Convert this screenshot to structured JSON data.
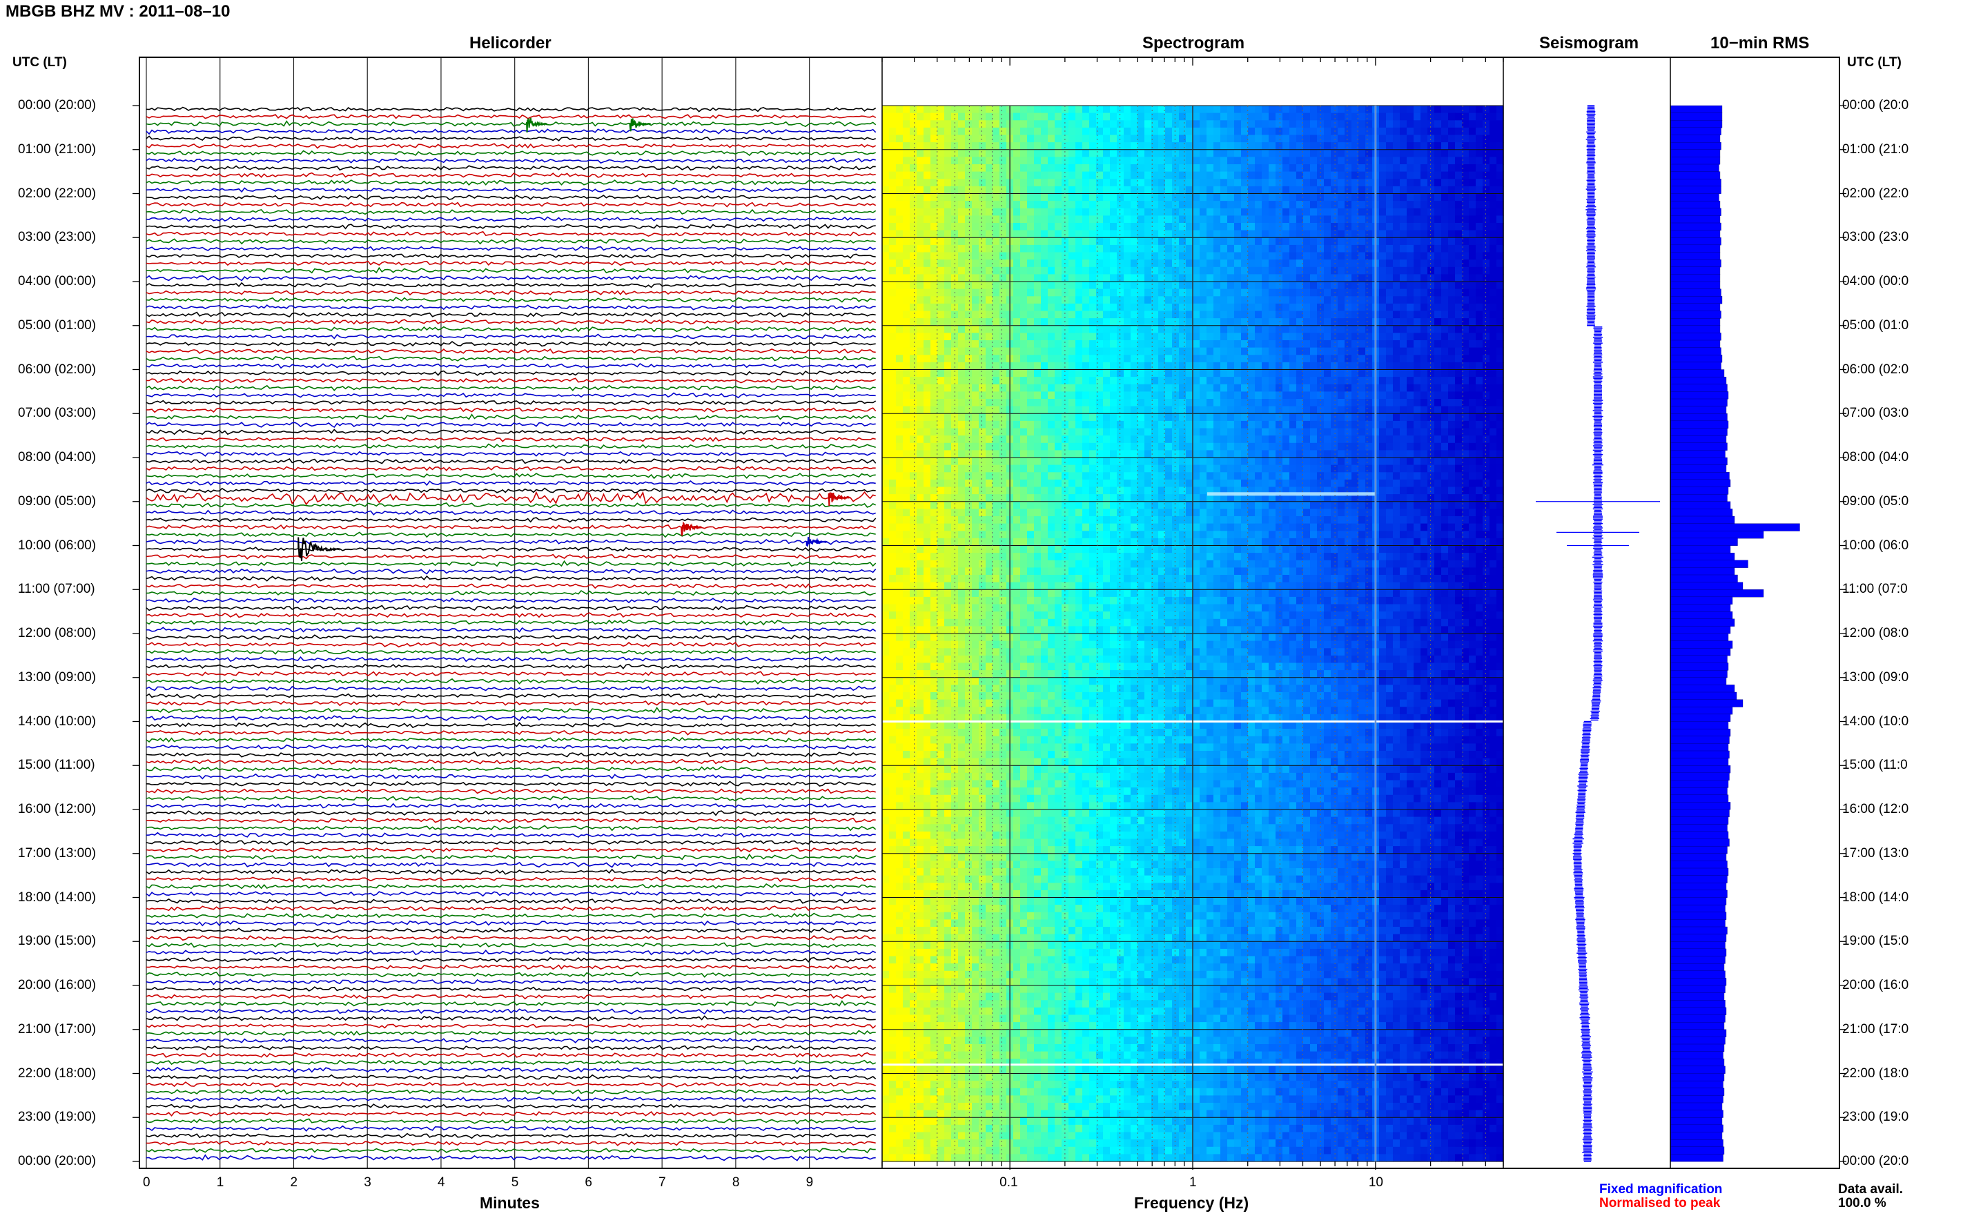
{
  "title": "MBGB BHZ MV : 2011–08–10",
  "panels": {
    "helicorder": "Helicorder",
    "spectrogram": "Spectrogram",
    "seismogram": "Seismogram",
    "rms": "10−min RMS"
  },
  "axis": {
    "utc_left": "UTC (LT)",
    "utc_right": "UTC (LT)",
    "minutes_label": "Minutes",
    "frequency_label": "Frequency (Hz)",
    "minute_ticks": [
      "0",
      "1",
      "2",
      "3",
      "4",
      "5",
      "6",
      "7",
      "8",
      "9"
    ],
    "freq_ticks": [
      "0.1",
      "1",
      "10"
    ]
  },
  "time_labels": [
    "00:00 (20:00)",
    "01:00 (21:00)",
    "02:00 (22:00)",
    "03:00 (23:00)",
    "04:00 (00:00)",
    "05:00 (01:00)",
    "06:00 (02:00)",
    "07:00 (03:00)",
    "08:00 (04:00)",
    "09:00 (05:00)",
    "10:00 (06:00)",
    "11:00 (07:00)",
    "12:00 (08:00)",
    "13:00 (09:00)",
    "14:00 (10:00)",
    "15:00 (11:00)",
    "16:00 (12:00)",
    "17:00 (13:00)",
    "18:00 (14:00)",
    "19:00 (15:00)",
    "20:00 (16:00)",
    "21:00 (17:00)",
    "22:00 (18:00)",
    "23:00 (19:00)",
    "00:00 (20:00)"
  ],
  "time_labels_right": [
    "00:00 (20:0",
    "01:00 (21:0",
    "02:00 (22:0",
    "03:00 (23:0",
    "04:00 (00:0",
    "05:00 (01:0",
    "06:00 (02:0",
    "07:00 (03:0",
    "08:00 (04:0",
    "09:00 (05:0",
    "10:00 (06:0",
    "11:00 (07:0",
    "12:00 (08:0",
    "13:00 (09:0",
    "14:00 (10:0",
    "15:00 (11:0",
    "16:00 (12:0",
    "17:00 (13:0",
    "18:00 (14:0",
    "19:00 (15:0",
    "20:00 (16:0",
    "21:00 (17:0",
    "22:00 (18:0",
    "23:00 (19:0",
    "00:00 (20:0"
  ],
  "legend": {
    "fixed": "Fixed magnification",
    "normalised": "Normalised to peak",
    "fixed_color": "#0000ff",
    "normalised_color": "#ff0000"
  },
  "data_avail": {
    "label": "Data avail.",
    "value": "100.0 %"
  },
  "chart_data": {
    "type": "heatmap",
    "station": "MBGB BHZ MV",
    "date": "2011-08-10",
    "helicorder": {
      "lines": 144,
      "minutes_per_line": 10,
      "trace_colors": [
        "#000000",
        "#cc0000",
        "#007700",
        "#0000cc"
      ],
      "events_minutes": [
        {
          "hour": 0.3,
          "minute": 5.2
        },
        {
          "hour": 0.3,
          "minute": 6.6
        },
        {
          "hour": 8.8,
          "minute": 9.3
        },
        {
          "hour": 9.5,
          "minute": 7.3
        },
        {
          "hour": 9.8,
          "minute": 9.0
        },
        {
          "hour": 10.0,
          "minute": 2.1
        }
      ],
      "high_noise_hour": 8.85
    },
    "spectrogram": {
      "x_scale": "log",
      "xlim_hz": [
        0.02,
        50
      ],
      "ticks_hz": [
        0.1,
        1,
        10
      ],
      "colormap": [
        "#ffff00",
        "#00ffff",
        "#0066ff",
        "#0000cc"
      ],
      "persistent_line_hz": 10,
      "gap_hours": [
        14.0,
        21.8
      ]
    },
    "seismogram": {
      "spikes_hours": [
        9.0,
        9.7,
        10.0
      ]
    },
    "rms": {
      "unit": "relative",
      "bins_per_hour": 6,
      "values": [
        0.5,
        0.5,
        0.5,
        0.49,
        0.48,
        0.49,
        0.48,
        0.48,
        0.47,
        0.48,
        0.49,
        0.49,
        0.47,
        0.48,
        0.49,
        0.48,
        0.49,
        0.48,
        0.49,
        0.48,
        0.48,
        0.49,
        0.48,
        0.48,
        0.48,
        0.49,
        0.5,
        0.48,
        0.49,
        0.48,
        0.48,
        0.49,
        0.48,
        0.49,
        0.5,
        0.49,
        0.52,
        0.54,
        0.55,
        0.56,
        0.55,
        0.54,
        0.55,
        0.56,
        0.55,
        0.54,
        0.55,
        0.53,
        0.55,
        0.54,
        0.57,
        0.58,
        0.56,
        0.55,
        0.58,
        0.6,
        0.62,
        1.25,
        0.9,
        0.65,
        0.58,
        0.62,
        0.75,
        0.62,
        0.65,
        0.7,
        0.9,
        0.6,
        0.58,
        0.6,
        0.62,
        0.58,
        0.56,
        0.6,
        0.58,
        0.55,
        0.56,
        0.55,
        0.54,
        0.62,
        0.64,
        0.7,
        0.6,
        0.58,
        0.56,
        0.58,
        0.57,
        0.56,
        0.57,
        0.56,
        0.58,
        0.57,
        0.56,
        0.55,
        0.56,
        0.58,
        0.57,
        0.56,
        0.55,
        0.56,
        0.57,
        0.55,
        0.54,
        0.55,
        0.56,
        0.55,
        0.54,
        0.55,
        0.54,
        0.53,
        0.54,
        0.53,
        0.55,
        0.54,
        0.53,
        0.54,
        0.53,
        0.52,
        0.53,
        0.54,
        0.53,
        0.52,
        0.53,
        0.54,
        0.53,
        0.52,
        0.54,
        0.53,
        0.52,
        0.51,
        0.52,
        0.53,
        0.52,
        0.51,
        0.52,
        0.51,
        0.5,
        0.51,
        0.5,
        0.51,
        0.5,
        0.51,
        0.52,
        0.51
      ]
    }
  }
}
